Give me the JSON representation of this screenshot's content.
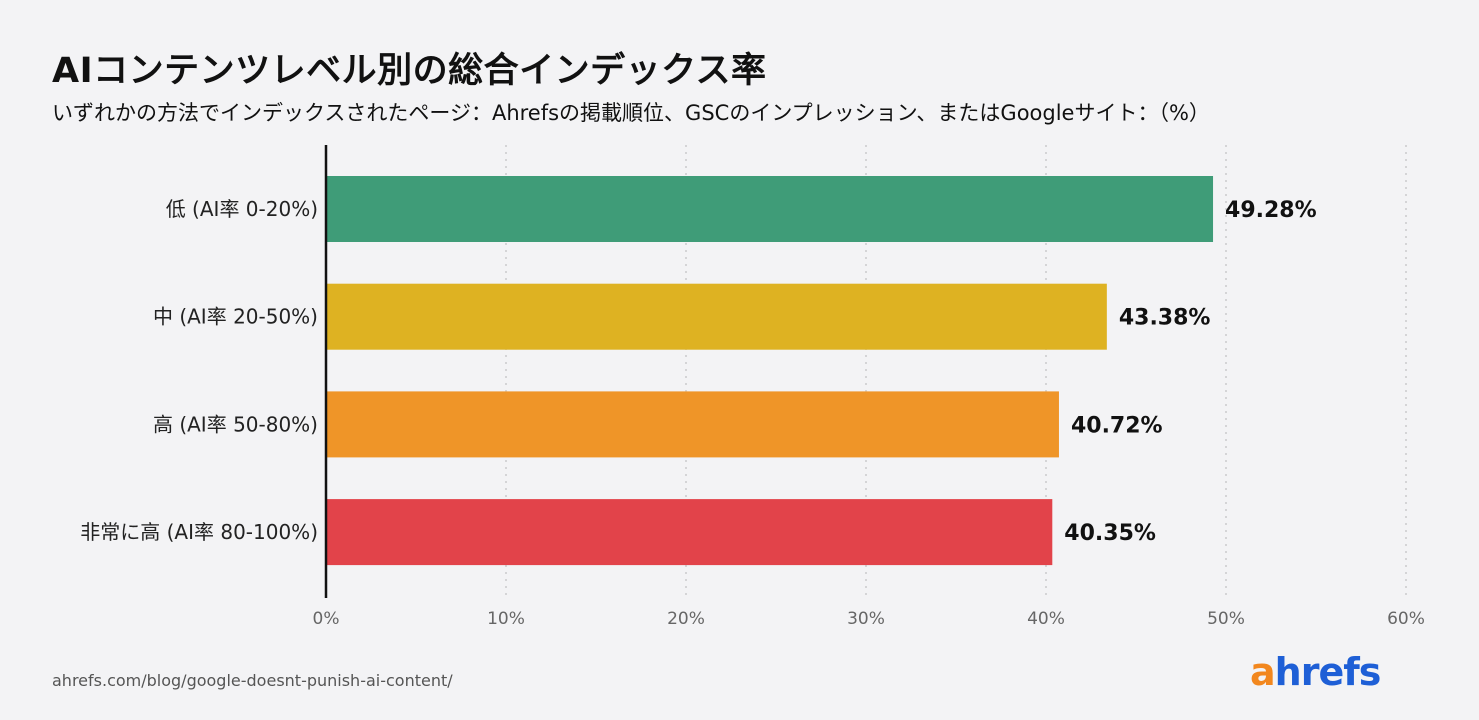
{
  "chart_data": {
    "type": "bar",
    "orientation": "horizontal",
    "title": "AIコンテンツレベル別の総合インデックス率",
    "subtitle": "いずれかの方法でインデックスされたページ：Ahrefsの掲載順位、GSCのインプレッション、またはGoogleサイト：（%）",
    "categories": [
      "低 (AI率 0-20%)",
      "中 (AI率 20-50%)",
      "高 (AI率 50-80%)",
      "非常に高 (AI率 80-100%)"
    ],
    "values": [
      49.28,
      43.38,
      40.72,
      40.35
    ],
    "value_labels": [
      "49.28%",
      "43.38%",
      "40.72%",
      "40.35%"
    ],
    "colors": [
      "#3f9c78",
      "#deb222",
      "#ef9528",
      "#e2434a"
    ],
    "xlim": [
      0,
      60
    ],
    "xticks": [
      0,
      10,
      20,
      30,
      40,
      50,
      60
    ],
    "xtick_labels": [
      "0%",
      "10%",
      "20%",
      "30%",
      "40%",
      "50%",
      "60%"
    ],
    "xlabel": "",
    "ylabel": "",
    "grid": "vertical dotted"
  },
  "footer": {
    "source": "ahrefs.com/blog/google-doesnt-punish-ai-content/",
    "logo_a": "a",
    "logo_rest": "hrefs"
  }
}
